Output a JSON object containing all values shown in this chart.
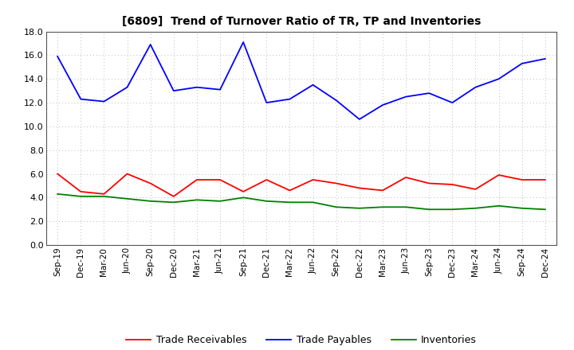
{
  "title": "[6809]  Trend of Turnover Ratio of TR, TP and Inventories",
  "x_labels": [
    "Sep-19",
    "Dec-19",
    "Mar-20",
    "Jun-20",
    "Sep-20",
    "Dec-20",
    "Mar-21",
    "Jun-21",
    "Sep-21",
    "Dec-21",
    "Mar-22",
    "Jun-22",
    "Sep-22",
    "Dec-22",
    "Mar-23",
    "Jun-23",
    "Sep-23",
    "Dec-23",
    "Mar-24",
    "Jun-24",
    "Sep-24",
    "Dec-24"
  ],
  "trade_receivables": [
    6.0,
    4.5,
    4.3,
    6.0,
    5.2,
    4.1,
    5.5,
    5.5,
    4.5,
    5.5,
    4.6,
    5.5,
    5.2,
    4.8,
    4.6,
    5.7,
    5.2,
    5.1,
    4.7,
    5.9,
    5.5,
    5.5
  ],
  "trade_payables": [
    15.9,
    12.3,
    12.1,
    13.3,
    16.9,
    13.0,
    13.3,
    13.1,
    17.1,
    12.0,
    12.3,
    13.5,
    12.2,
    10.6,
    11.8,
    12.5,
    12.8,
    12.0,
    13.3,
    14.0,
    15.3,
    15.7
  ],
  "inventories": [
    4.3,
    4.1,
    4.1,
    3.9,
    3.7,
    3.6,
    3.8,
    3.7,
    4.0,
    3.7,
    3.6,
    3.6,
    3.2,
    3.1,
    3.2,
    3.2,
    3.0,
    3.0,
    3.1,
    3.3,
    3.1,
    3.0
  ],
  "ylim": [
    0.0,
    18.0
  ],
  "yticks": [
    0.0,
    2.0,
    4.0,
    6.0,
    8.0,
    10.0,
    12.0,
    14.0,
    16.0,
    18.0
  ],
  "line_colors": {
    "trade_receivables": "#ff0000",
    "trade_payables": "#0000ff",
    "inventories": "#008000"
  },
  "legend_labels": [
    "Trade Receivables",
    "Trade Payables",
    "Inventories"
  ],
  "background_color": "#ffffff",
  "grid_color": "#bbbbbb"
}
